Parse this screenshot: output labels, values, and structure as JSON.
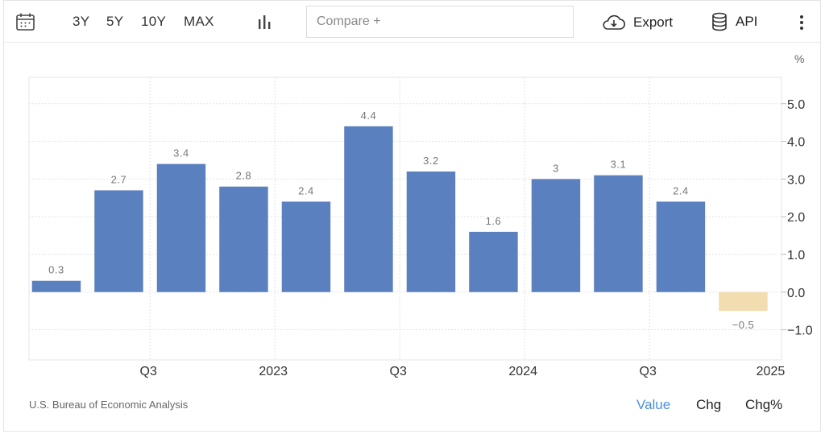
{
  "toolbar": {
    "ranges": [
      "3Y",
      "5Y",
      "10Y",
      "MAX"
    ],
    "compare_placeholder": "Compare +",
    "export_label": "Export",
    "api_label": "API",
    "icons": [
      "calendar-icon",
      "bar-chart-icon",
      "cloud-download-icon",
      "database-icon",
      "more-vertical-icon"
    ]
  },
  "chart_data": {
    "type": "bar",
    "unit": "%",
    "x_tick_labels": [
      "Q3",
      "2023",
      "Q3",
      "2024",
      "Q3",
      "2025"
    ],
    "values": [
      0.3,
      2.7,
      3.4,
      2.8,
      2.4,
      4.4,
      3.2,
      1.6,
      3,
      3.1,
      2.4,
      -0.5
    ],
    "data_labels": [
      "0.3",
      "2.7",
      "3.4",
      "2.8",
      "2.4",
      "4.4",
      "3.2",
      "1.6",
      "3",
      "3.1",
      "2.4",
      "−0.5"
    ],
    "y_tick_labels": [
      "5.0",
      "4.0",
      "3.0",
      "2.0",
      "1.0",
      "0.0",
      "−1.0"
    ],
    "y_ticks": [
      5,
      4,
      3,
      2,
      1,
      0,
      -1
    ],
    "ylim": [
      -1.8,
      5.7
    ],
    "axis_side": "right",
    "grid": true,
    "colors": {
      "positive": "#5b80bf",
      "negative": "#f1ddb0",
      "label": "#777777"
    }
  },
  "footer": {
    "source": "U.S. Bureau of Economic Analysis",
    "toggles": [
      "Value",
      "Chg",
      "Chg%"
    ],
    "active_toggle": "Value",
    "active_color": "#4a90d9"
  }
}
